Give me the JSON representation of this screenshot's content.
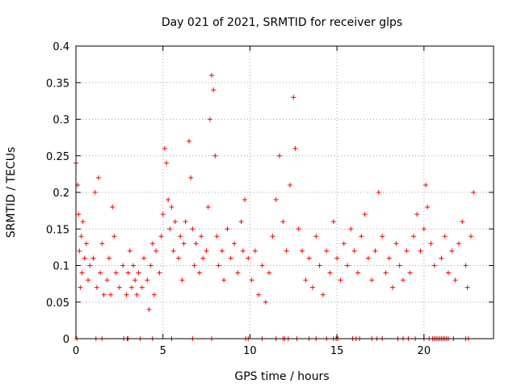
{
  "chart_data": {
    "type": "scatter",
    "title": "Day 021 of 2021, SRMTID for receiver glps",
    "xlabel": "GPS time / hours",
    "ylabel": "SRMTID / TECUs",
    "xlim": [
      0,
      24
    ],
    "ylim": [
      0,
      0.4
    ],
    "xticks": [
      0,
      5,
      10,
      15,
      20
    ],
    "xtick_labels": [
      "0",
      "5",
      "10",
      "15",
      "20"
    ],
    "yticks": [
      0,
      0.05,
      0.1,
      0.15,
      0.2,
      0.25,
      0.3,
      0.35,
      0.4
    ],
    "ytick_labels": [
      "0",
      "0.05",
      "0.1",
      "0.15",
      "0.2",
      "0.25",
      "0.3",
      "0.35",
      "0.4"
    ],
    "grid": true,
    "marker": "plus",
    "color": "#ff0000",
    "zero_points_x": [
      0.05,
      1.15,
      1.5,
      2.75,
      2.95,
      3.0,
      3.7,
      4.4,
      5.5,
      6.7,
      7.8,
      9.75,
      9.9,
      10.7,
      11.5,
      11.9,
      12.0,
      12.2,
      12.7,
      13.4,
      13.8,
      14.4,
      14.8,
      14.95,
      15.05,
      15.9,
      16.1,
      16.3,
      17.0,
      17.3,
      17.6,
      18.5,
      18.8,
      19.1,
      19.5,
      20.0,
      20.3,
      20.5,
      20.6,
      20.7,
      20.8,
      20.9,
      21.0,
      21.1,
      21.2,
      21.3,
      21.4,
      21.7,
      22.4,
      22.55
    ],
    "samples": [
      [
        0.0,
        0.24
      ],
      [
        0.1,
        0.21
      ],
      [
        0.15,
        0.17
      ],
      [
        0.2,
        0.12
      ],
      [
        0.25,
        0.07
      ],
      [
        0.3,
        0.14
      ],
      [
        0.35,
        0.09
      ],
      [
        0.4,
        0.16
      ],
      [
        0.5,
        0.11
      ],
      [
        0.6,
        0.13
      ],
      [
        0.7,
        0.08
      ],
      [
        0.8,
        0.1
      ],
      [
        1.0,
        0.11
      ],
      [
        1.1,
        0.2
      ],
      [
        1.2,
        0.07
      ],
      [
        1.3,
        0.22
      ],
      [
        1.4,
        0.09
      ],
      [
        1.5,
        0.13
      ],
      [
        1.6,
        0.06
      ],
      [
        1.8,
        0.08
      ],
      [
        1.9,
        0.11
      ],
      [
        2.0,
        0.06
      ],
      [
        2.1,
        0.18
      ],
      [
        2.2,
        0.14
      ],
      [
        2.3,
        0.09
      ],
      [
        2.5,
        0.07
      ],
      [
        2.7,
        0.1
      ],
      [
        2.9,
        0.06
      ],
      [
        3.0,
        0.09
      ],
      [
        3.1,
        0.12
      ],
      [
        3.2,
        0.07
      ],
      [
        3.3,
        0.1
      ],
      [
        3.4,
        0.08
      ],
      [
        3.5,
        0.06
      ],
      [
        3.6,
        0.09
      ],
      [
        3.8,
        0.07
      ],
      [
        3.9,
        0.11
      ],
      [
        4.1,
        0.08
      ],
      [
        4.2,
        0.04
      ],
      [
        4.3,
        0.1
      ],
      [
        4.4,
        0.13
      ],
      [
        4.5,
        0.06
      ],
      [
        4.6,
        0.12
      ],
      [
        4.8,
        0.09
      ],
      [
        4.9,
        0.14
      ],
      [
        5.0,
        0.17
      ],
      [
        5.1,
        0.26
      ],
      [
        5.2,
        0.24
      ],
      [
        5.3,
        0.19
      ],
      [
        5.4,
        0.15
      ],
      [
        5.5,
        0.18
      ],
      [
        5.6,
        0.12
      ],
      [
        5.7,
        0.16
      ],
      [
        5.9,
        0.11
      ],
      [
        6.0,
        0.14
      ],
      [
        6.1,
        0.08
      ],
      [
        6.2,
        0.13
      ],
      [
        6.3,
        0.16
      ],
      [
        6.5,
        0.27
      ],
      [
        6.6,
        0.22
      ],
      [
        6.7,
        0.15
      ],
      [
        6.8,
        0.1
      ],
      [
        6.9,
        0.13
      ],
      [
        7.1,
        0.09
      ],
      [
        7.2,
        0.14
      ],
      [
        7.3,
        0.11
      ],
      [
        7.5,
        0.12
      ],
      [
        7.6,
        0.18
      ],
      [
        7.7,
        0.3
      ],
      [
        7.8,
        0.36
      ],
      [
        7.9,
        0.34
      ],
      [
        8.0,
        0.25
      ],
      [
        8.1,
        0.14
      ],
      [
        8.2,
        0.1
      ],
      [
        8.4,
        0.12
      ],
      [
        8.5,
        0.08
      ],
      [
        8.7,
        0.15
      ],
      [
        8.9,
        0.11
      ],
      [
        9.1,
        0.13
      ],
      [
        9.3,
        0.09
      ],
      [
        9.5,
        0.16
      ],
      [
        9.6,
        0.12
      ],
      [
        9.7,
        0.19
      ],
      [
        9.9,
        0.11
      ],
      [
        10.1,
        0.08
      ],
      [
        10.3,
        0.12
      ],
      [
        10.5,
        0.06
      ],
      [
        10.7,
        0.1
      ],
      [
        10.9,
        0.05
      ],
      [
        11.1,
        0.09
      ],
      [
        11.3,
        0.14
      ],
      [
        11.5,
        0.19
      ],
      [
        11.7,
        0.25
      ],
      [
        11.9,
        0.16
      ],
      [
        12.1,
        0.12
      ],
      [
        12.3,
        0.21
      ],
      [
        12.5,
        0.33
      ],
      [
        12.6,
        0.26
      ],
      [
        12.8,
        0.15
      ],
      [
        13.0,
        0.12
      ],
      [
        13.2,
        0.08
      ],
      [
        13.4,
        0.11
      ],
      [
        13.6,
        0.07
      ],
      [
        13.8,
        0.14
      ],
      [
        14.0,
        0.1
      ],
      [
        14.2,
        0.06
      ],
      [
        14.4,
        0.12
      ],
      [
        14.6,
        0.09
      ],
      [
        14.8,
        0.16
      ],
      [
        15.0,
        0.11
      ],
      [
        15.2,
        0.08
      ],
      [
        15.4,
        0.13
      ],
      [
        15.6,
        0.1
      ],
      [
        15.8,
        0.15
      ],
      [
        16.0,
        0.12
      ],
      [
        16.2,
        0.09
      ],
      [
        16.4,
        0.14
      ],
      [
        16.6,
        0.17
      ],
      [
        16.8,
        0.11
      ],
      [
        17.0,
        0.08
      ],
      [
        17.2,
        0.12
      ],
      [
        17.4,
        0.2
      ],
      [
        17.6,
        0.14
      ],
      [
        17.8,
        0.09
      ],
      [
        18.0,
        0.11
      ],
      [
        18.2,
        0.07
      ],
      [
        18.4,
        0.13
      ],
      [
        18.6,
        0.1
      ],
      [
        18.8,
        0.08
      ],
      [
        19.0,
        0.12
      ],
      [
        19.2,
        0.09
      ],
      [
        19.4,
        0.14
      ],
      [
        19.6,
        0.17
      ],
      [
        19.8,
        0.12
      ],
      [
        20.0,
        0.15
      ],
      [
        20.1,
        0.21
      ],
      [
        20.2,
        0.18
      ],
      [
        20.4,
        0.13
      ],
      [
        20.6,
        0.1
      ],
      [
        21.0,
        0.11
      ],
      [
        21.2,
        0.14
      ],
      [
        21.4,
        0.09
      ],
      [
        21.6,
        0.12
      ],
      [
        21.8,
        0.08
      ],
      [
        22.0,
        0.13
      ],
      [
        22.2,
        0.16
      ],
      [
        22.4,
        0.1
      ],
      [
        22.5,
        0.07
      ],
      [
        22.7,
        0.14
      ],
      [
        22.85,
        0.2
      ]
    ]
  }
}
